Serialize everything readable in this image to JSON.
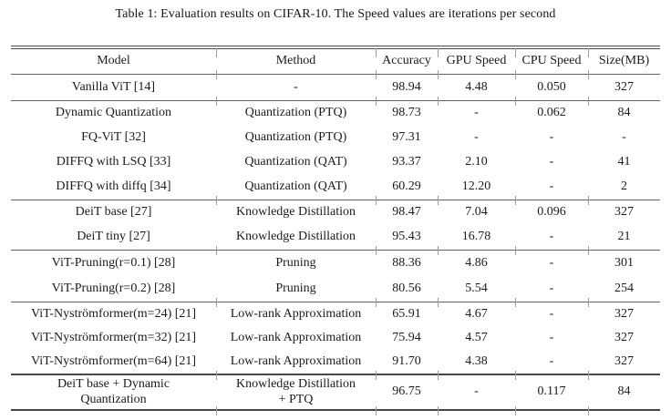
{
  "caption": "Table 1: Evaluation results on CIFAR-10. The Speed values are iterations per second",
  "table": {
    "columns": [
      "Model",
      "Method",
      "Accuracy",
      "GPU Speed",
      "CPU Speed",
      "Size(MB)"
    ],
    "groups": [
      {
        "rows": [
          [
            "Vanilla ViT [14]",
            "-",
            "98.94",
            "4.48",
            "0.050",
            "327"
          ]
        ]
      },
      {
        "rows": [
          [
            "Dynamic Quantization",
            "Quantization (PTQ)",
            "98.73",
            "-",
            "0.062",
            "84"
          ],
          [
            "FQ-ViT [32]",
            "Quantization (PTQ)",
            "97.31",
            "-",
            "-",
            "-"
          ],
          [
            "DIFFQ with LSQ [33]",
            "Quantization (QAT)",
            "93.37",
            "2.10",
            "-",
            "41"
          ],
          [
            "DIFFQ with diffq [34]",
            "Quantization (QAT)",
            "60.29",
            "12.20",
            "-",
            "2"
          ]
        ]
      },
      {
        "rows": [
          [
            "DeiT base [27]",
            "Knowledge Distillation",
            "98.47",
            "7.04",
            "0.096",
            "327"
          ],
          [
            "DeiT tiny [27]",
            "Knowledge Distillation",
            "95.43",
            "16.78",
            "-",
            "21"
          ]
        ]
      },
      {
        "rows": [
          [
            "ViT-Pruning(r=0.1) [28]",
            "Pruning",
            "88.36",
            "4.86",
            "-",
            "301"
          ],
          [
            "ViT-Pruning(r=0.2) [28]",
            "Pruning",
            "80.56",
            "5.54",
            "-",
            "254"
          ]
        ]
      },
      {
        "rows": [
          [
            "ViT-Nyströmformer(m=24) [21]",
            "Low-rank Approximation",
            "65.91",
            "4.67",
            "-",
            "327"
          ],
          [
            "ViT-Nyströmformer(m=32) [21]",
            "Low-rank Approximation",
            "75.94",
            "4.57",
            "-",
            "327"
          ],
          [
            "ViT-Nyströmformer(m=64) [21]",
            "Low-rank Approximation",
            "91.70",
            "4.38",
            "-",
            "327"
          ]
        ]
      },
      {
        "rows": [
          [
            "DeiT base + Dynamic\nQuantization",
            "Knowledge Distillation\n+ PTQ",
            "96.75",
            "-",
            "0.117",
            "84"
          ]
        ]
      }
    ]
  }
}
